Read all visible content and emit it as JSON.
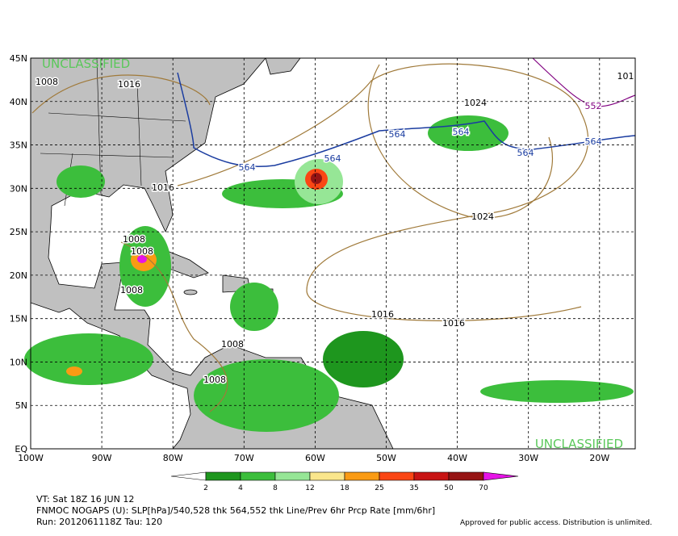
{
  "map": {
    "lat_labels": [
      "45N",
      "40N",
      "35N",
      "30N",
      "25N",
      "20N",
      "15N",
      "10N",
      "5N",
      "EQ"
    ],
    "lon_labels": [
      "100W",
      "90W",
      "80W",
      "70W",
      "60W",
      "50W",
      "40W",
      "30W",
      "20W"
    ],
    "watermarks": [
      "UNCLASSIFIED",
      "UNCLASSIFIED"
    ],
    "contour_labels": [
      "1008",
      "1016",
      "1016",
      "1008",
      "1008",
      "1008",
      "1008",
      "1008",
      "564",
      "564",
      "564",
      "564",
      "564",
      "564",
      "552",
      "1024",
      "1024",
      "1016",
      "1016",
      "101"
    ]
  },
  "colorbar": {
    "labels": [
      "2",
      "4",
      "8",
      "12",
      "18",
      "25",
      "35",
      "50",
      "70"
    ],
    "colors": [
      "#ffffff",
      "#1e961e",
      "#3cbe3c",
      "#96e696",
      "#fae68c",
      "#fa9b14",
      "#fa4614",
      "#c81414",
      "#961414",
      "#e614e6"
    ]
  },
  "footer": {
    "valid_time": "VT: Sat 18Z 16 JUN 12",
    "description": "FNMOC NOGAPS (U): SLP[hPa]/540,528 thk 564,552 thk Line/Prev 6hr Prcp Rate [mm/6hr]",
    "run": "Run: 2012061118Z Tau: 120",
    "release": "Approved for public access. Distribution is unlimited."
  }
}
